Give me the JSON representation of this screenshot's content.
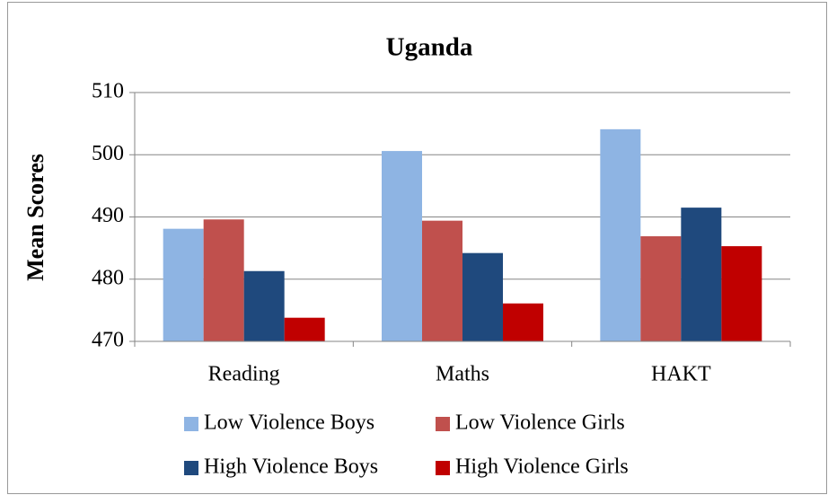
{
  "chart_data": {
    "type": "bar",
    "title": "Uganda",
    "y_label": "Mean Scores",
    "categories": [
      "Reading",
      "Maths",
      "HAKT"
    ],
    "series": [
      {
        "name": "Low Violence Boys",
        "color": "#8eb4e3",
        "values": [
          488.1,
          500.6,
          504.1
        ]
      },
      {
        "name": "Low Violence Girls",
        "color": "#c0504d",
        "values": [
          489.6,
          489.4,
          486.9
        ]
      },
      {
        "name": "High Violence Boys",
        "color": "#1f497d",
        "values": [
          481.3,
          484.2,
          491.5
        ]
      },
      {
        "name": "High Violence Girls",
        "color": "#c00000",
        "values": [
          473.8,
          476.1,
          485.3
        ]
      }
    ],
    "ylim": [
      470,
      510
    ],
    "yticks": [
      470,
      480,
      490,
      500,
      510
    ],
    "grid": true
  }
}
